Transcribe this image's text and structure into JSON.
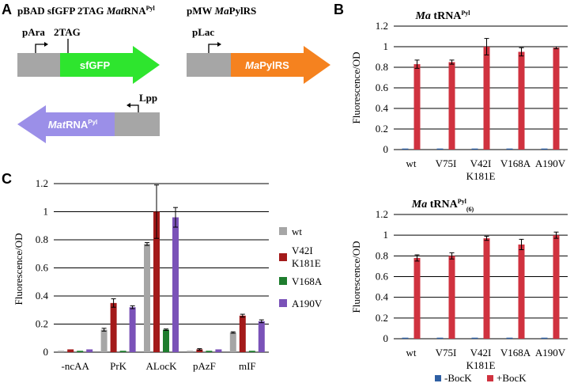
{
  "panels": {
    "a": {
      "letter": "A"
    },
    "b": {
      "letter": "B"
    },
    "c": {
      "letter": "C"
    }
  },
  "construct_a": {
    "title_prefix": "pBAD sfGFP 2TAG ",
    "title_italic": "Mat",
    "title_rest": "RNA",
    "title_sup": "Pyl",
    "promoter_label": "pAra",
    "codon_label": "2TAG",
    "gene_label": "sfGFP",
    "gene_color": "#2ee52e",
    "backbone_color": "#a6a6a6"
  },
  "construct_b": {
    "title_prefix": "pMW ",
    "title_italic": "Ma",
    "title_rest": "PylRS",
    "promoter_label": "pLac",
    "gene_italic": "Ma",
    "gene_rest": "PylRS",
    "gene_color": "#f5821f"
  },
  "construct_c": {
    "promoter_label": "Lpp",
    "gene_italic": "Mat",
    "gene_rest": "RNA",
    "gene_sup": "Pyl",
    "gene_color": "#9b8fe8"
  },
  "chart_data": [
    {
      "id": "B-top",
      "type": "bar",
      "title_italic": "Ma",
      "title_rest": " tRNA",
      "title_sup": "Pyl",
      "ylabel": "Fluorescence/OD",
      "ylim": [
        0,
        1.2
      ],
      "yticks": [
        "0",
        "0.2",
        "0.4",
        "0.6",
        "0.8",
        "1",
        "1.2"
      ],
      "categories": [
        [
          "wt"
        ],
        [
          "V75I"
        ],
        [
          "V42I",
          "K181E"
        ],
        [
          "V168A"
        ],
        [
          "A190V"
        ]
      ],
      "series": [
        {
          "name": "-BocK",
          "color": "#2e5fa3",
          "values": [
            0.01,
            0.01,
            0.01,
            0.01,
            0.01
          ],
          "errors": [
            0.002,
            0.002,
            0.002,
            0.002,
            0.002
          ]
        },
        {
          "name": "+BocK",
          "color": "#d0323f",
          "values": [
            0.83,
            0.85,
            1.0,
            0.95,
            0.99
          ],
          "errors": [
            0.04,
            0.02,
            0.08,
            0.04,
            0.01
          ]
        }
      ]
    },
    {
      "id": "B-bottom",
      "type": "bar",
      "title_italic": "Ma",
      "title_rest": " tRNA",
      "title_sup": "Pyl",
      "title_sub": "(6)",
      "ylabel": "Fluorescence/OD",
      "ylim": [
        0,
        1.2
      ],
      "yticks": [
        "0",
        "0.2",
        "0.4",
        "0.6",
        "0.8",
        "1",
        "1.2"
      ],
      "categories": [
        [
          "wt"
        ],
        [
          "V75I"
        ],
        [
          "V42I",
          "K181E"
        ],
        [
          "V168A"
        ],
        [
          "A190V"
        ]
      ],
      "series": [
        {
          "name": "-BocK",
          "color": "#2e5fa3",
          "values": [
            0.01,
            0.01,
            0.01,
            0.01,
            0.01
          ],
          "errors": [
            0.002,
            0.002,
            0.002,
            0.002,
            0.002
          ]
        },
        {
          "name": "+BocK",
          "color": "#d0323f",
          "values": [
            0.78,
            0.8,
            0.97,
            0.91,
            1.0
          ],
          "errors": [
            0.03,
            0.03,
            0.02,
            0.05,
            0.03
          ]
        }
      ]
    },
    {
      "id": "C",
      "type": "bar",
      "ylabel": "Fluorescence/OD",
      "ylim": [
        0,
        1.2
      ],
      "yticks": [
        "0",
        "0.2",
        "0.4",
        "0.6",
        "0.8",
        "1",
        "1.2"
      ],
      "categories": [
        [
          "-ncAA"
        ],
        [
          "PrK"
        ],
        [
          "ALocK"
        ],
        [
          "pAzF"
        ],
        [
          "mIF"
        ]
      ],
      "series": [
        {
          "name": "wt",
          "color": "#a6a6a6",
          "values": [
            0.01,
            0.16,
            0.77,
            0.01,
            0.14
          ],
          "errors": [
            0.003,
            0.01,
            0.01,
            0.003,
            0.005
          ]
        },
        {
          "name": "V42I K181E",
          "legend_lines": [
            "V42I",
            "K181E"
          ],
          "color": "#a31a1a",
          "values": [
            0.02,
            0.35,
            1.0,
            0.02,
            0.26
          ],
          "errors": [
            0.003,
            0.03,
            0.19,
            0.005,
            0.01
          ]
        },
        {
          "name": "V168A",
          "color": "#1e7d2e",
          "values": [
            0.01,
            0.01,
            0.16,
            0.01,
            0.01
          ],
          "errors": [
            0.002,
            0.002,
            0.005,
            0.002,
            0.002
          ]
        },
        {
          "name": "A190V",
          "color": "#7a52b8",
          "values": [
            0.02,
            0.32,
            0.96,
            0.02,
            0.22
          ],
          "errors": [
            0.003,
            0.01,
            0.07,
            0.003,
            0.01
          ]
        }
      ]
    }
  ],
  "legend_b": [
    {
      "label": "-BocK",
      "color": "#2e5fa3"
    },
    {
      "label": "+BocK",
      "color": "#d0323f"
    }
  ]
}
